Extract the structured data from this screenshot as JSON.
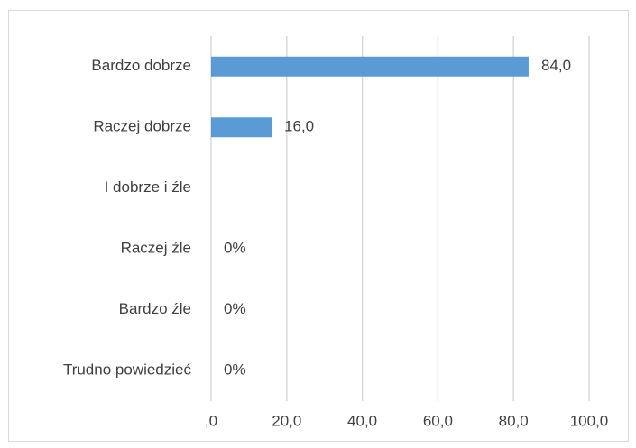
{
  "chart_data": {
    "type": "hbar",
    "categories": [
      "Bardzo dobrze",
      "Raczej dobrze",
      "I dobrze i źle",
      "Raczej źle",
      "Bardzo źle",
      "Trudno powiedzieć"
    ],
    "values": [
      84,
      16,
      0,
      0,
      0,
      0
    ],
    "value_labels": [
      "84,0",
      "16,0",
      null,
      "0%",
      "0%",
      "0%"
    ],
    "color": "#5b9bd5",
    "xlim": [
      0,
      100
    ],
    "xticks": [
      {
        "value": 0,
        "label": ",0"
      },
      {
        "value": 20,
        "label": "20,0"
      },
      {
        "value": 40,
        "label": "40,0"
      },
      {
        "value": 60,
        "label": "60,0"
      },
      {
        "value": 80,
        "label": "80,0"
      },
      {
        "value": 100,
        "label": "100,0"
      }
    ],
    "grid": true
  }
}
